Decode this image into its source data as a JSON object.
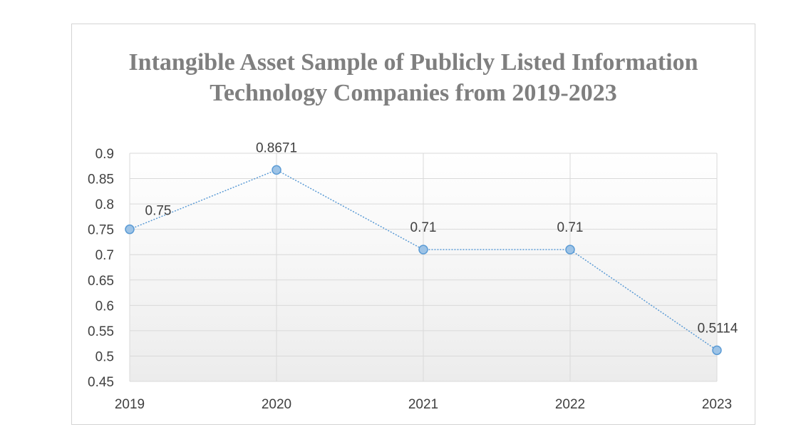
{
  "chart_data": {
    "type": "line",
    "title": "Intangible Asset Sample of Publicly Listed Information Technology Companies from 2019-2023",
    "xlabel": "",
    "ylabel": "",
    "categories": [
      "2019",
      "2020",
      "2021",
      "2022",
      "2023"
    ],
    "series": [
      {
        "values": [
          0.75,
          0.8671,
          0.71,
          0.71,
          0.5114
        ],
        "labels": [
          "0.75",
          "0.8671",
          "0.71",
          "0.71",
          "0.5114"
        ]
      }
    ],
    "ylim": [
      0.45,
      0.9
    ],
    "yticks": [
      "0.45",
      "0.5",
      "0.55",
      "0.6",
      "0.65",
      "0.7",
      "0.75",
      "0.8",
      "0.85",
      "0.9"
    ],
    "grid": true,
    "legend": "none",
    "colors": {
      "line": "#5b9bd5",
      "marker_fill": "#9dc3e6",
      "marker_stroke": "#5b9bd5",
      "grid": "#d9d9d9",
      "text": "#404040",
      "title": "#7f7f7f"
    }
  }
}
